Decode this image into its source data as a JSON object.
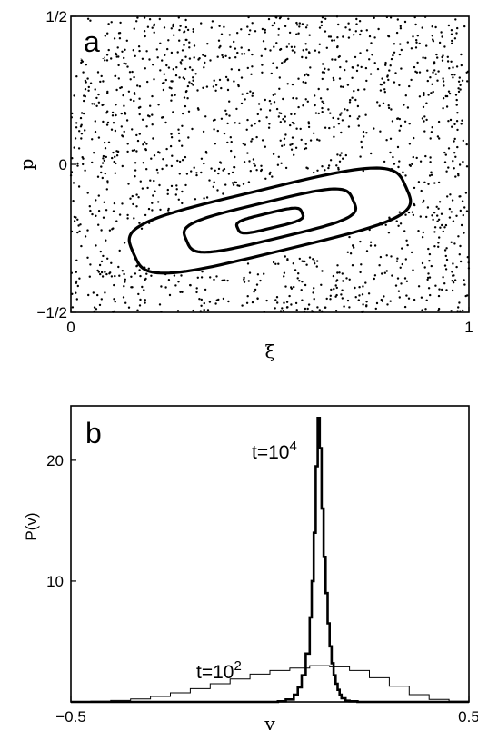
{
  "chart_data": [
    {
      "type": "scatter",
      "panel_label": "a",
      "xlabel": "ξ",
      "ylabel": "p",
      "xlim": [
        0,
        1
      ],
      "ylim": [
        -0.5,
        0.5
      ],
      "x_ticks": [
        {
          "value": 0,
          "label": "0"
        },
        {
          "value": 1,
          "label": "1"
        }
      ],
      "y_ticks": [
        {
          "value": 0.5,
          "label": "1/2"
        },
        {
          "value": 0,
          "label": "0"
        },
        {
          "value": -0.5,
          "label": "−1/2"
        }
      ],
      "background": "uniformly scattered chaotic points over the full phase space",
      "scatter_count": 1500,
      "islands": [
        {
          "name": "outer orbit",
          "center": [
            0.5,
            -0.19
          ],
          "half_length": 0.36,
          "half_width": 0.105,
          "slope_deg": 18
        },
        {
          "name": "middle orbit",
          "center": [
            0.5,
            -0.19
          ],
          "half_length": 0.22,
          "half_width": 0.062,
          "slope_deg": 18
        },
        {
          "name": "inner orbit",
          "center": [
            0.5,
            -0.19
          ],
          "half_length": 0.085,
          "half_width": 0.025,
          "slope_deg": 18
        }
      ],
      "grid": false
    },
    {
      "type": "line",
      "panel_label": "b",
      "xlabel": "v",
      "ylabel": "P(v)",
      "xlim": [
        -0.5,
        0.5
      ],
      "ylim": [
        0,
        24.5
      ],
      "x_ticks": [
        {
          "value": -0.5,
          "label": "−0.5"
        },
        {
          "value": 0.5,
          "label": "0.5"
        }
      ],
      "y_ticks": [
        {
          "value": 10,
          "label": "10"
        },
        {
          "value": 20,
          "label": "20"
        }
      ],
      "series": [
        {
          "name": "t=10^4",
          "label_base": "t=10",
          "label_exp": "4",
          "stroke_width": 2.6,
          "x": [
            -0.5,
            0.0,
            0.02,
            0.04,
            0.06,
            0.07,
            0.08,
            0.09,
            0.1,
            0.105,
            0.11,
            0.115,
            0.12,
            0.125,
            0.13,
            0.135,
            0.14,
            0.145,
            0.15,
            0.155,
            0.16,
            0.165,
            0.17,
            0.175,
            0.18,
            0.19,
            0.2,
            0.22,
            0.25,
            0.5
          ],
          "values": [
            0.0,
            0.0,
            0.05,
            0.2,
            0.6,
            1.2,
            2.2,
            4.0,
            7.0,
            10.0,
            14.0,
            19.5,
            23.5,
            21.0,
            16.0,
            12.0,
            9.0,
            6.5,
            4.6,
            3.2,
            2.2,
            1.5,
            1.0,
            0.6,
            0.3,
            0.1,
            0.05,
            0.0,
            0.0,
            0.0
          ]
        },
        {
          "name": "t=10^2",
          "label_base": "t=10",
          "label_exp": "2",
          "stroke_width": 1.0,
          "x": [
            -0.5,
            -0.45,
            -0.4,
            -0.35,
            -0.3,
            -0.25,
            -0.2,
            -0.15,
            -0.1,
            -0.05,
            0.0,
            0.05,
            0.1,
            0.15,
            0.2,
            0.25,
            0.3,
            0.35,
            0.4,
            0.45,
            0.5
          ],
          "values": [
            0.0,
            0.05,
            0.12,
            0.25,
            0.45,
            0.75,
            1.1,
            1.5,
            1.9,
            2.3,
            2.6,
            2.8,
            3.0,
            2.9,
            2.6,
            2.0,
            1.3,
            0.6,
            0.2,
            0.05,
            0.0
          ]
        }
      ],
      "grid": false
    }
  ]
}
